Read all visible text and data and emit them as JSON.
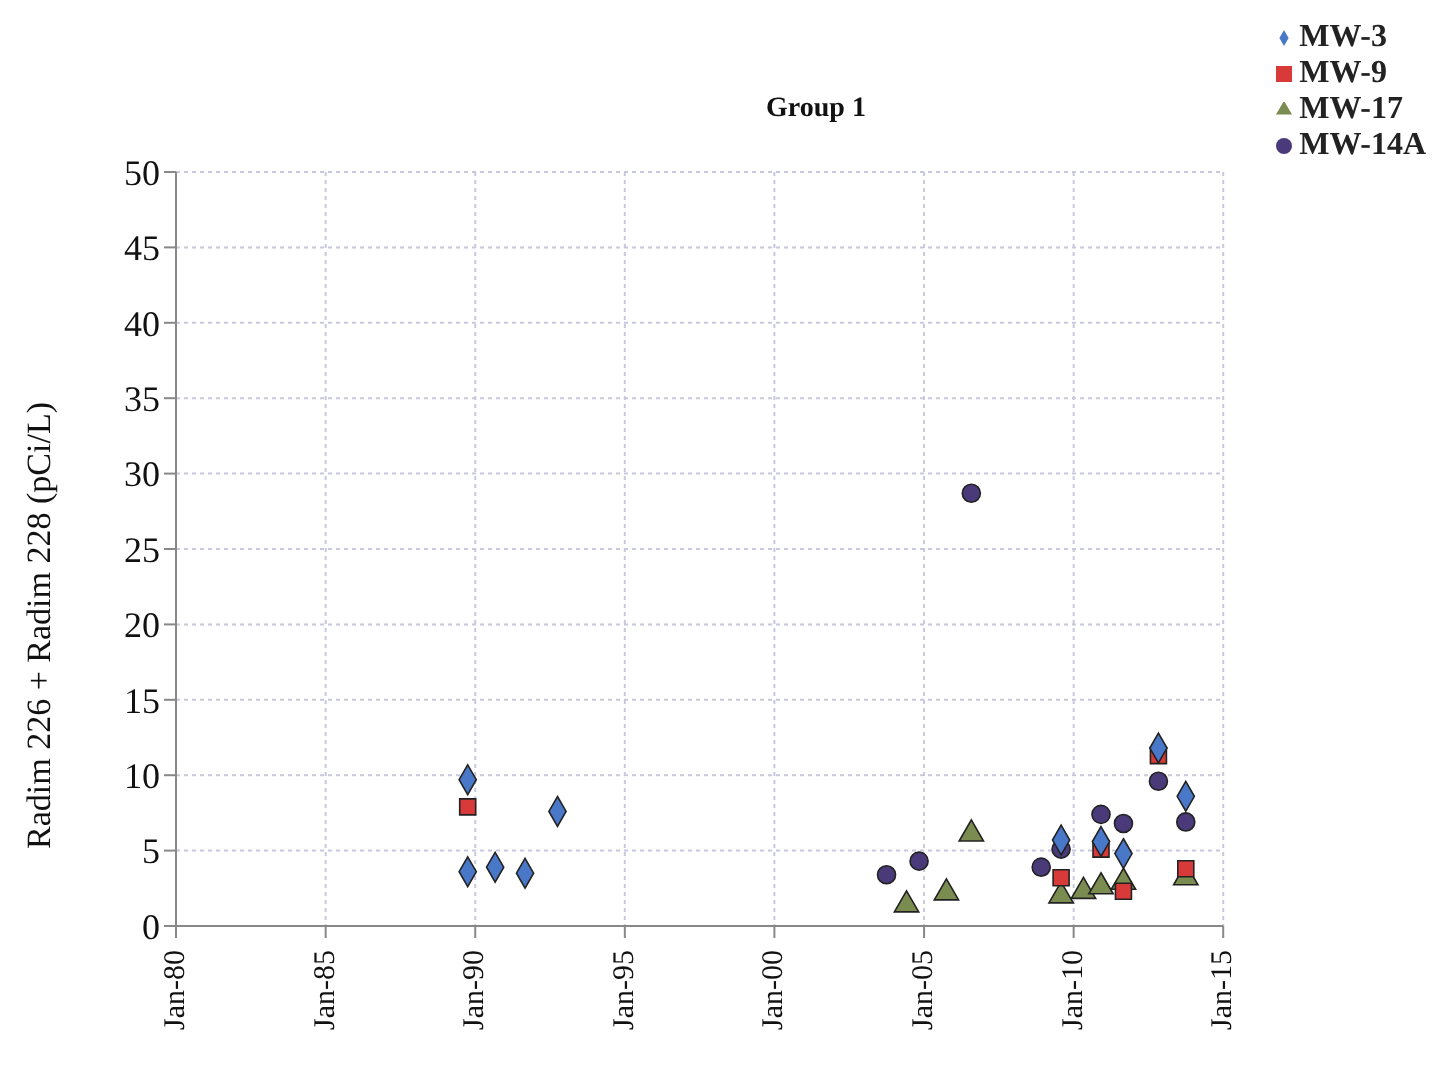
{
  "chart_data": {
    "type": "scatter",
    "title": "Group 1",
    "ylabel": "Radim 226 + Radim 228 (pCi/L)",
    "xlim": [
      "1980-01",
      "2015-01"
    ],
    "xticks": [
      {
        "value": "1980-01",
        "label": "Jan-80"
      },
      {
        "value": "1985-01",
        "label": "Jan-85"
      },
      {
        "value": "1990-01",
        "label": "Jan-90"
      },
      {
        "value": "1995-01",
        "label": "Jan-95"
      },
      {
        "value": "2000-01",
        "label": "Jan-00"
      },
      {
        "value": "2005-01",
        "label": "Jan-05"
      },
      {
        "value": "2010-01",
        "label": "Jan-10"
      },
      {
        "value": "2015-01",
        "label": "Jan-15"
      }
    ],
    "ylim": [
      0,
      50
    ],
    "yticks": [
      0,
      5,
      10,
      15,
      20,
      25,
      30,
      35,
      40,
      45,
      50
    ],
    "grid": true,
    "legend": "top right",
    "series": [
      {
        "name": "MW-3",
        "color": "#4a78c8",
        "marker": "diamond",
        "x": [
          "1989-10",
          "1989-10",
          "1990-09",
          "1991-09",
          "1992-10",
          "2009-08",
          "2010-12",
          "2011-09",
          "2012-11",
          "2013-10"
        ],
        "values": [
          9.7,
          3.6,
          3.9,
          3.5,
          7.6,
          5.7,
          5.6,
          4.8,
          11.8,
          8.6
        ]
      },
      {
        "name": "MW-9",
        "color": "#d83a3a",
        "marker": "square",
        "x": [
          "1989-10",
          "2009-08",
          "2010-12",
          "2011-09",
          "2012-11",
          "2013-10"
        ],
        "values": [
          7.9,
          3.2,
          5.1,
          2.3,
          11.3,
          3.8
        ]
      },
      {
        "name": "MW-17",
        "color": "#7a8c50",
        "marker": "triangle",
        "x": [
          "2004-06",
          "2005-10",
          "2006-08",
          "2009-08",
          "2010-05",
          "2010-12",
          "2011-09",
          "2013-10"
        ],
        "values": [
          1.4,
          2.2,
          6.1,
          2.0,
          2.3,
          2.6,
          2.9,
          3.2
        ]
      },
      {
        "name": "MW-14A",
        "color": "#4a3a7a",
        "marker": "circle",
        "x": [
          "2003-10",
          "2004-11",
          "2006-08",
          "2008-12",
          "2009-08",
          "2010-12",
          "2011-09",
          "2012-11",
          "2013-10"
        ],
        "values": [
          3.4,
          4.3,
          28.7,
          3.9,
          5.1,
          7.4,
          6.8,
          9.6,
          6.9
        ]
      }
    ]
  }
}
